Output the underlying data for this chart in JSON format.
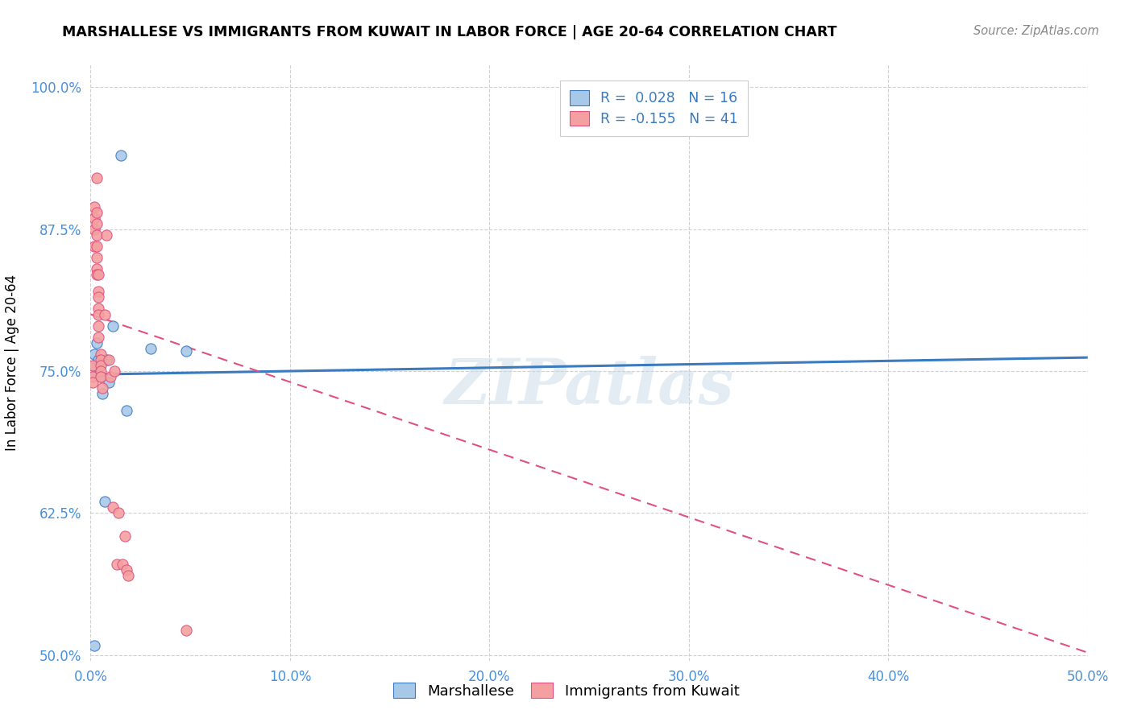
{
  "title": "MARSHALLESE VS IMMIGRANTS FROM KUWAIT IN LABOR FORCE | AGE 20-64 CORRELATION CHART",
  "source": "Source: ZipAtlas.com",
  "ylabel": "In Labor Force | Age 20-64",
  "xlabel": "",
  "xlim": [
    0.0,
    0.5
  ],
  "ylim": [
    0.495,
    1.02
  ],
  "yticks": [
    0.5,
    0.625,
    0.75,
    0.875,
    1.0
  ],
  "ytick_labels": [
    "50.0%",
    "62.5%",
    "75.0%",
    "87.5%",
    "100.0%"
  ],
  "xticks": [
    0.0,
    0.1,
    0.2,
    0.3,
    0.4,
    0.5
  ],
  "xtick_labels": [
    "0.0%",
    "10.0%",
    "20.0%",
    "30.0%",
    "40.0%",
    "50.0%"
  ],
  "blue_color": "#a8c8e8",
  "pink_color": "#f4a0a0",
  "blue_line_color": "#3a7abf",
  "pink_line_color": "#e05080",
  "watermark": "ZIPatlas",
  "legend_R_blue": "R =  0.028",
  "legend_N_blue": "N = 16",
  "legend_R_pink": "R = -0.155",
  "legend_N_pink": "N = 41",
  "blue_scatter_x": [
    0.001,
    0.002,
    0.002,
    0.003,
    0.004,
    0.005,
    0.006,
    0.007,
    0.008,
    0.009,
    0.011,
    0.015,
    0.018,
    0.03,
    0.048,
    0.002
  ],
  "blue_scatter_y": [
    0.748,
    0.765,
    0.755,
    0.775,
    0.76,
    0.745,
    0.73,
    0.635,
    0.76,
    0.74,
    0.79,
    0.94,
    0.715,
    0.77,
    0.768,
    0.508
  ],
  "pink_scatter_x": [
    0.001,
    0.001,
    0.001,
    0.002,
    0.002,
    0.002,
    0.002,
    0.003,
    0.003,
    0.003,
    0.003,
    0.003,
    0.003,
    0.003,
    0.003,
    0.004,
    0.004,
    0.004,
    0.004,
    0.004,
    0.004,
    0.004,
    0.005,
    0.005,
    0.005,
    0.005,
    0.005,
    0.006,
    0.007,
    0.008,
    0.009,
    0.01,
    0.011,
    0.012,
    0.013,
    0.014,
    0.016,
    0.017,
    0.018,
    0.019,
    0.048
  ],
  "pink_scatter_y": [
    0.755,
    0.745,
    0.74,
    0.895,
    0.885,
    0.875,
    0.86,
    0.89,
    0.88,
    0.87,
    0.86,
    0.85,
    0.84,
    0.835,
    0.92,
    0.835,
    0.82,
    0.815,
    0.805,
    0.8,
    0.79,
    0.78,
    0.765,
    0.76,
    0.755,
    0.75,
    0.745,
    0.735,
    0.8,
    0.87,
    0.76,
    0.745,
    0.63,
    0.75,
    0.58,
    0.625,
    0.58,
    0.605,
    0.575,
    0.57,
    0.522
  ],
  "blue_line_x": [
    0.0,
    0.5
  ],
  "blue_line_y": [
    0.747,
    0.762
  ],
  "pink_line_x": [
    0.0,
    0.5
  ],
  "pink_line_y": [
    0.8,
    0.502
  ],
  "grid_color": "#d0d0d0",
  "bg_color": "#ffffff"
}
